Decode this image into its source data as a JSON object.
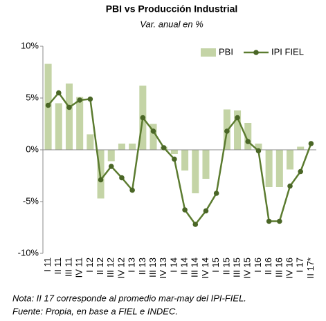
{
  "chart_data": {
    "type": "bar_line",
    "title": "PBI vs Producción Industrial",
    "subtitle": "Var. anual en %",
    "categories": [
      "I 11",
      "II 11",
      "III 11",
      "IV 11",
      "I 12",
      "II 12",
      "III 12",
      "IV 12",
      "I 13",
      "II 13",
      "III 13",
      "IV 13",
      "I 14",
      "II 14",
      "III 14",
      "IV 14",
      "I 15",
      "II 15",
      "III 15",
      "IV 15",
      "I 16",
      "II 16",
      "III 16",
      "IV 16",
      "I 17",
      "II 17*"
    ],
    "series": [
      {
        "name": "PBI",
        "kind": "bar",
        "color": "#c4d4a6",
        "values": [
          8.3,
          4.5,
          6.4,
          5.1,
          1.5,
          -4.7,
          -1.1,
          0.6,
          0.6,
          6.2,
          2.5,
          0.3,
          -0.4,
          -2.0,
          -4.2,
          -2.8,
          0,
          3.9,
          3.8,
          2.6,
          0.6,
          -3.6,
          -3.6,
          -1.9,
          0.3,
          null
        ]
      },
      {
        "name": "IPI FIEL",
        "kind": "line",
        "color": "#5b7b2f",
        "values": [
          4.3,
          5.5,
          4.1,
          4.8,
          4.9,
          -2.9,
          -1.6,
          -2.7,
          -3.9,
          3.1,
          1.8,
          0.2,
          -0.9,
          -5.8,
          -7.2,
          -5.9,
          -4.2,
          1.8,
          3.1,
          0.8,
          -0.1,
          -6.9,
          -6.9,
          -3.5,
          -2.1,
          0.6
        ]
      }
    ],
    "ylim": [
      -10,
      10
    ],
    "yticks": [
      {
        "value": 10,
        "label": "10%"
      },
      {
        "value": 5,
        "label": "5%"
      },
      {
        "value": 0,
        "label": "0%"
      },
      {
        "value": -5,
        "label": "-5%"
      },
      {
        "value": -10,
        "label": "-10%"
      }
    ],
    "legend": "top-right",
    "notes": [
      "Nota: II 17 corresponde al promedio mar-may del IPI-FIEL.",
      "Fuente: Propia, en base a FIEL e INDEC."
    ]
  }
}
